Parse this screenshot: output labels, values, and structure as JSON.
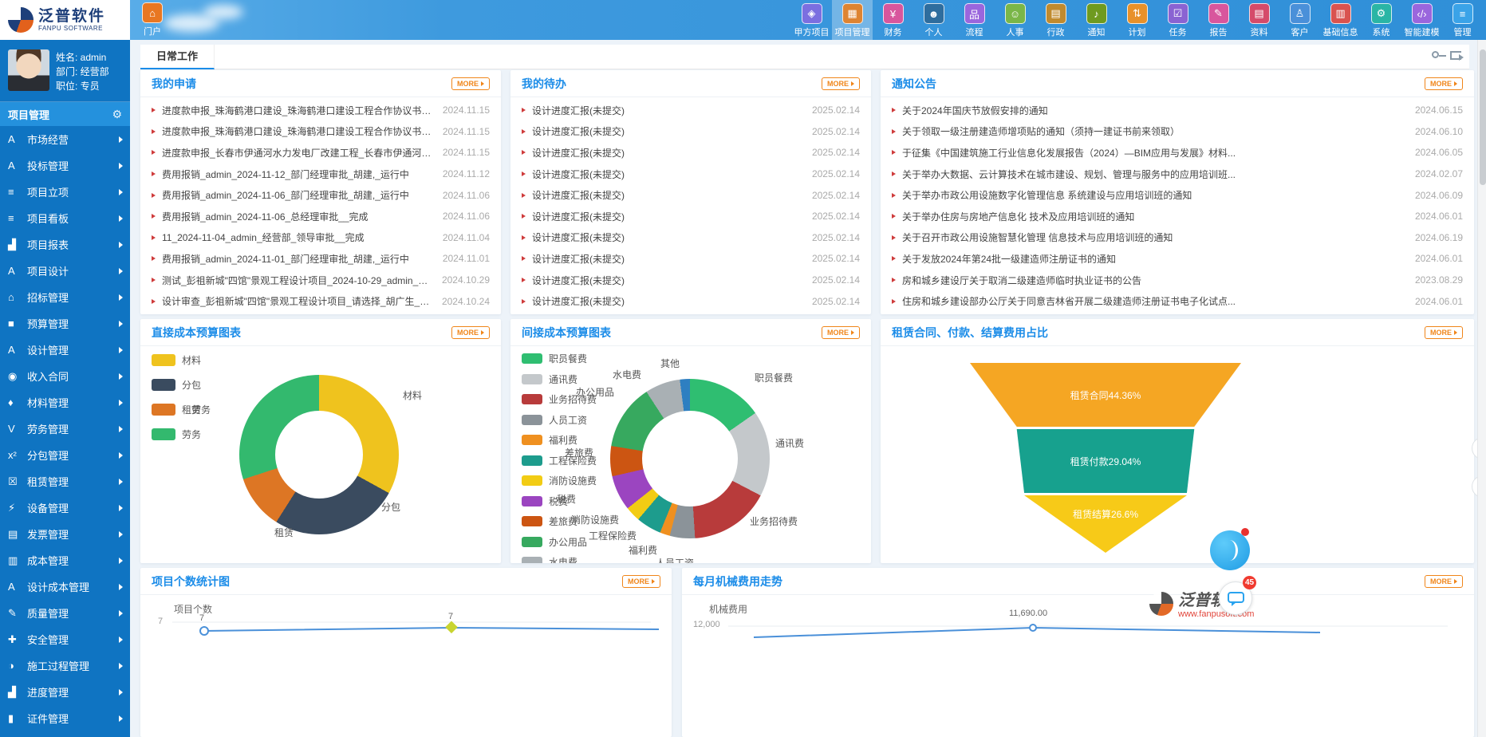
{
  "header": {
    "logo": {
      "title": "泛普软件",
      "subtitle": "FANPU SOFTWARE"
    },
    "portal": {
      "label": "门户",
      "glyph": "⌂"
    },
    "nav": [
      {
        "label": "甲方项目",
        "icon": "party-a-project-icon",
        "glyph": "◈",
        "color": "#7b6fe0"
      },
      {
        "label": "项目管理",
        "icon": "project-management-icon",
        "glyph": "▦",
        "color": "#de8432",
        "active": true
      },
      {
        "label": "财务",
        "icon": "finance-icon",
        "glyph": "¥",
        "color": "#d8569d"
      },
      {
        "label": "个人",
        "icon": "personal-icon",
        "glyph": "☻",
        "color": "#2e6d9e"
      },
      {
        "label": "流程",
        "icon": "workflow-icon",
        "glyph": "品",
        "color": "#9a66dd"
      },
      {
        "label": "人事",
        "icon": "hr-icon",
        "glyph": "☺",
        "color": "#7ab648"
      },
      {
        "label": "行政",
        "icon": "admin-icon",
        "glyph": "▤",
        "color": "#c08a2e"
      },
      {
        "label": "通知",
        "icon": "notice-icon",
        "glyph": "♪",
        "color": "#6f9a1f"
      },
      {
        "label": "计划",
        "icon": "plan-icon",
        "glyph": "⇅",
        "color": "#e8912a"
      },
      {
        "label": "任务",
        "icon": "task-icon",
        "glyph": "☑",
        "color": "#8a63d2"
      },
      {
        "label": "报告",
        "icon": "report-icon",
        "glyph": "✎",
        "color": "#d8569d"
      },
      {
        "label": "资料",
        "icon": "document-icon",
        "glyph": "▤",
        "color": "#d54b6a"
      },
      {
        "label": "客户",
        "icon": "customer-icon",
        "glyph": "♙",
        "color": "#4a90d9"
      },
      {
        "label": "基础信息",
        "icon": "base-info-icon",
        "glyph": "▥",
        "color": "#d9534f"
      },
      {
        "label": "系统",
        "icon": "system-icon",
        "glyph": "⚙",
        "color": "#2ab5a5"
      },
      {
        "label": "智能建模",
        "icon": "smart-modeling-icon",
        "glyph": "‹/›",
        "color": "#9a66dd"
      },
      {
        "label": "管理",
        "icon": "manage-icon",
        "glyph": "≡",
        "color": "#3aa3e8"
      }
    ]
  },
  "sidebar": {
    "user": {
      "name": "姓名: admin",
      "dept": "部门: 经营部",
      "role": "职位: 专员"
    },
    "section": {
      "title": "项目管理",
      "gear_glyph": "⚙"
    },
    "items": [
      {
        "label": "市场经营",
        "glyph": "A"
      },
      {
        "label": "投标管理",
        "glyph": "A"
      },
      {
        "label": "项目立项",
        "glyph": "≡"
      },
      {
        "label": "项目看板",
        "glyph": "≡"
      },
      {
        "label": "项目报表",
        "glyph": "▟"
      },
      {
        "label": "项目设计",
        "glyph": "A"
      },
      {
        "label": "招标管理",
        "glyph": "⌂"
      },
      {
        "label": "预算管理",
        "glyph": "■"
      },
      {
        "label": "设计管理",
        "glyph": "A"
      },
      {
        "label": "收入合同",
        "glyph": "◉"
      },
      {
        "label": "材料管理",
        "glyph": "♦"
      },
      {
        "label": "劳务管理",
        "glyph": "V"
      },
      {
        "label": "分包管理",
        "glyph": "x²"
      },
      {
        "label": "租赁管理",
        "glyph": "☒"
      },
      {
        "label": "设备管理",
        "glyph": "⚡"
      },
      {
        "label": "发票管理",
        "glyph": "▤"
      },
      {
        "label": "成本管理",
        "glyph": "▥"
      },
      {
        "label": "设计成本管理",
        "glyph": "A"
      },
      {
        "label": "质量管理",
        "glyph": "✎"
      },
      {
        "label": "安全管理",
        "glyph": "✚"
      },
      {
        "label": "施工过程管理",
        "glyph": "◑"
      },
      {
        "label": "进度管理",
        "glyph": "▟"
      },
      {
        "label": "证件管理",
        "glyph": "▮"
      }
    ]
  },
  "tabs": {
    "daily_work": "日常工作"
  },
  "panels": {
    "my_applications": {
      "title": "我的申请",
      "more": "MORE",
      "items": [
        {
          "text": "进度款申报_珠海鹤港口建设_珠海鹤港口建设工程合作协议书_admin_...",
          "date": "2024.11.15"
        },
        {
          "text": "进度款申报_珠海鹤港口建设_珠海鹤港口建设工程合作协议书_admin_...",
          "date": "2024.11.15"
        },
        {
          "text": "进度款申报_长春市伊通河水力发电厂改建工程_长春市伊通河水力发电...",
          "date": "2024.11.15"
        },
        {
          "text": "费用报销_admin_2024-11-12_部门经理审批_胡建,_运行中",
          "date": "2024.11.12"
        },
        {
          "text": "费用报销_admin_2024-11-06_部门经理审批_胡建,_运行中",
          "date": "2024.11.06"
        },
        {
          "text": "费用报销_admin_2024-11-06_总经理审批__完成",
          "date": "2024.11.06"
        },
        {
          "text": "11_2024-11-04_admin_经营部_领导审批__完成",
          "date": "2024.11.04"
        },
        {
          "text": "费用报销_admin_2024-11-01_部门经理审批_胡建,_运行中",
          "date": "2024.11.01"
        },
        {
          "text": "测试_彭祖新城\"四馆\"景观工程设计项目_2024-10-29_admin_结束__完成",
          "date": "2024.10.29"
        },
        {
          "text": "设计审查_彭祖新城\"四馆\"景观工程设计项目_请选择_胡广生_2024-10-2...",
          "date": "2024.10.24"
        }
      ]
    },
    "my_todos": {
      "title": "我的待办",
      "more": "MORE",
      "items": [
        {
          "text": "设计进度汇报(未提交)",
          "date": "2025.02.14"
        },
        {
          "text": "设计进度汇报(未提交)",
          "date": "2025.02.14"
        },
        {
          "text": "设计进度汇报(未提交)",
          "date": "2025.02.14"
        },
        {
          "text": "设计进度汇报(未提交)",
          "date": "2025.02.14"
        },
        {
          "text": "设计进度汇报(未提交)",
          "date": "2025.02.14"
        },
        {
          "text": "设计进度汇报(未提交)",
          "date": "2025.02.14"
        },
        {
          "text": "设计进度汇报(未提交)",
          "date": "2025.02.14"
        },
        {
          "text": "设计进度汇报(未提交)",
          "date": "2025.02.14"
        },
        {
          "text": "设计进度汇报(未提交)",
          "date": "2025.02.14"
        },
        {
          "text": "设计进度汇报(未提交)",
          "date": "2025.02.14"
        }
      ]
    },
    "notices": {
      "title": "通知公告",
      "more": "MORE",
      "items": [
        {
          "text": "关于2024年国庆节放假安排的通知",
          "date": "2024.06.15"
        },
        {
          "text": "关于领取一级注册建造师增项贴的通知（须持一建证书前来领取）",
          "date": "2024.06.10"
        },
        {
          "text": "于征集《中国建筑施工行业信息化发展报告（2024）—BIM应用与发展》材料...",
          "date": "2024.06.05"
        },
        {
          "text": "关于举办大数据、云计算技术在城市建设、规划、管理与服务中的应用培训班...",
          "date": "2024.02.07"
        },
        {
          "text": "关于举办市政公用设施数字化管理信息 系统建设与应用培训班的通知",
          "date": "2024.06.09"
        },
        {
          "text": "关于举办住房与房地产信息化 技术及应用培训班的通知",
          "date": "2024.06.01"
        },
        {
          "text": "关于召开市政公用设施智慧化管理 信息技术与应用培训班的通知",
          "date": "2024.06.19"
        },
        {
          "text": "关于发放2024年第24批一级建造师注册证书的通知",
          "date": "2024.06.01"
        },
        {
          "text": "房和城乡建设厅关于取消二级建造师临时执业证书的公告",
          "date": "2023.08.29"
        },
        {
          "text": "住房和城乡建设部办公厅关于同意吉林省开展二级建造师注册证书电子化试点...",
          "date": "2024.06.01"
        }
      ]
    },
    "direct_cost": {
      "title": "直接成本预算图表",
      "more": "MORE"
    },
    "indirect_cost": {
      "title": "间接成本预算图表",
      "more": "MORE"
    },
    "rental_funnel": {
      "title": "租赁合同、付款、结算费用占比",
      "more": "MORE"
    },
    "project_count": {
      "title": "项目个数统计图",
      "more": "MORE"
    },
    "machine_cost": {
      "title": "每月机械费用走势",
      "more": "MORE"
    }
  },
  "chart_data": [
    {
      "id": "direct_cost_donut",
      "type": "pie",
      "title": "直接成本预算图表",
      "legend_position": "left",
      "donut": true,
      "segments": [
        {
          "label": "材料",
          "value": 33,
          "color": "#efc31e"
        },
        {
          "label": "分包",
          "value": 26,
          "color": "#3a4b5f"
        },
        {
          "label": "租赁",
          "value": 11,
          "color": "#dd7624"
        },
        {
          "label": "劳务",
          "value": 30,
          "color": "#33b96e"
        }
      ]
    },
    {
      "id": "indirect_cost_donut",
      "type": "pie",
      "title": "间接成本预算图表",
      "legend_position": "left",
      "donut": true,
      "segments": [
        {
          "label": "职员餐费",
          "value": 15,
          "color": "#2fbe71"
        },
        {
          "label": "通讯费",
          "value": 17,
          "color": "#c4c8cb"
        },
        {
          "label": "业务招待费",
          "value": 16,
          "color": "#b83b3b"
        },
        {
          "label": "人员工资",
          "value": 5,
          "color": "#8b9399"
        },
        {
          "label": "福利费",
          "value": 2,
          "color": "#ef9020"
        },
        {
          "label": "工程保险费",
          "value": 5,
          "color": "#1d9c8d"
        },
        {
          "label": "消防设施费",
          "value": 3,
          "color": "#f2cc14"
        },
        {
          "label": "税费",
          "value": 7,
          "color": "#9b45c0"
        },
        {
          "label": "差旅费",
          "value": 6,
          "color": "#cc5512"
        },
        {
          "label": "办公用品",
          "value": 13,
          "color": "#37a95f"
        },
        {
          "label": "水电费",
          "value": 7,
          "color": "#a9b0b4"
        },
        {
          "label": "其他",
          "value": 2,
          "color": "#2e7fc1"
        }
      ]
    },
    {
      "id": "rental_funnel",
      "type": "funnel",
      "title": "租赁合同、付款、结算费用占比",
      "segments": [
        {
          "label": "租赁合同",
          "value": 44.36,
          "percent_label": "租赁合同44.36%",
          "color": "#f5a623"
        },
        {
          "label": "租赁付款",
          "value": 29.04,
          "percent_label": "租赁付款29.04%",
          "color": "#17a18e"
        },
        {
          "label": "租赁结算",
          "value": 26.6,
          "percent_label": "租赁结算26.6%",
          "color": "#f7ca18"
        }
      ]
    },
    {
      "id": "project_count_line",
      "type": "line",
      "title": "项目个数统计图",
      "ylabel": "项目个数",
      "y_ticks_visible": [
        "7"
      ],
      "values_visible": [
        7,
        7
      ]
    },
    {
      "id": "machine_cost_line",
      "type": "line",
      "title": "每月机械费用走势",
      "ylabel": "机械费用",
      "y_ticks_visible": [
        "12,000"
      ],
      "data_labels_visible": [
        "11,690.00"
      ]
    }
  ],
  "floating": {
    "chat_badge": "45",
    "watermark": {
      "title": "泛普软件",
      "url": "www.fanpusoft.com"
    }
  }
}
